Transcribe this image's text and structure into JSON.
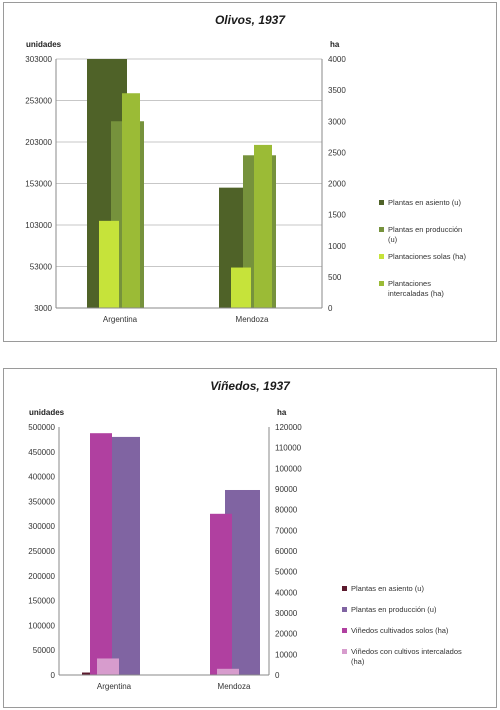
{
  "chart_data": [
    {
      "type": "bar",
      "title": "Olivos, 1937",
      "left_axis_label": "unidades",
      "right_axis_label": "ha",
      "categories": [
        "Argentina",
        "Mendoza"
      ],
      "ylim_left": [
        3000,
        303000
      ],
      "ylim_right": [
        0,
        4000
      ],
      "left_ticks": [
        303000,
        253000,
        203000,
        153000,
        103000,
        53000,
        3000
      ],
      "left_tick_labels": [
        "303000",
        "253000",
        "203000",
        "153000",
        "103000",
        "53000",
        "3000"
      ],
      "right_ticks": [
        4000,
        3500,
        3000,
        2500,
        2000,
        1500,
        1000,
        500,
        0
      ],
      "right_tick_labels": [
        "4000",
        "3500",
        "3000",
        "2500",
        "2000",
        "1500",
        "1000",
        "500",
        "0"
      ],
      "grid": true,
      "legend_position": "right",
      "series": [
        {
          "name": "Plantas en asiento (u)",
          "axis": "left",
          "color": "#4f6228",
          "values": [
            303000,
            148000
          ]
        },
        {
          "name": "Plantas en producción (u)",
          "axis": "left",
          "color": "#76923c",
          "values": [
            228000,
            187000
          ]
        },
        {
          "name": "Plantaciones solas (ha)",
          "axis": "right",
          "color": "#c6e33a",
          "values": [
            1400,
            650
          ]
        },
        {
          "name": "Plantaciones intercaladas (ha)",
          "axis": "right",
          "color": "#9bbb36",
          "values": [
            3450,
            2620
          ]
        }
      ]
    },
    {
      "type": "bar",
      "title": "Viñedos, 1937",
      "left_axis_label": "unidades",
      "right_axis_label": "ha",
      "categories": [
        "Argentina",
        "Mendoza"
      ],
      "ylim_left": [
        0,
        500000
      ],
      "ylim_right": [
        0,
        120000
      ],
      "left_ticks": [
        500000,
        450000,
        400000,
        350000,
        300000,
        250000,
        200000,
        150000,
        100000,
        50000,
        0
      ],
      "left_tick_labels": [
        "500000",
        "450000",
        "400000",
        "350000",
        "300000",
        "250000",
        "200000",
        "150000",
        "100000",
        "50000",
        "0"
      ],
      "right_ticks": [
        120000,
        110000,
        100000,
        90000,
        80000,
        70000,
        60000,
        50000,
        40000,
        30000,
        20000,
        10000,
        0
      ],
      "right_tick_labels": [
        "120000",
        "110000",
        "100000",
        "90000",
        "80000",
        "70000",
        "60000",
        "50000",
        "40000",
        "30000",
        "20000",
        "10000",
        "0"
      ],
      "grid": false,
      "legend_position": "right",
      "series": [
        {
          "name": "Plantas en asiento (u)",
          "axis": "left",
          "color": "#5c1a2e",
          "values": [
            5000,
            0
          ]
        },
        {
          "name": "Plantas en producción (u)",
          "axis": "left",
          "color": "#8064a2",
          "values": [
            480000,
            373000
          ]
        },
        {
          "name": "Viñedos cultivados solos (ha)",
          "axis": "right",
          "color": "#b040a0",
          "values": [
            117000,
            78000
          ]
        },
        {
          "name": "Viñedos con cultivos intercalados (ha)",
          "axis": "right",
          "color": "#d79ccd",
          "values": [
            8000,
            3000
          ]
        }
      ]
    }
  ]
}
